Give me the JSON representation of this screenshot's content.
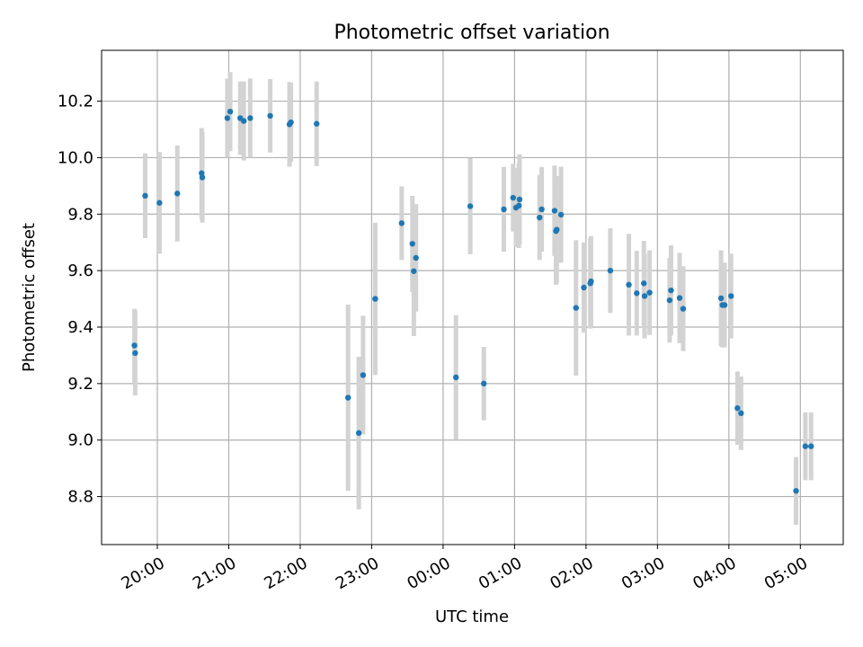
{
  "chart_data": {
    "type": "scatter",
    "title": "Photometric offset variation",
    "xlabel": "UTC time",
    "ylabel": "Photometric offset",
    "grid": true,
    "xlim": [
      -4.78,
      5.6
    ],
    "ylim": [
      8.63,
      10.38
    ],
    "x_unit": "hours relative to 00:00 UTC",
    "xticks": [
      {
        "value": -4,
        "label": "20:00"
      },
      {
        "value": -3,
        "label": "21:00"
      },
      {
        "value": -2,
        "label": "22:00"
      },
      {
        "value": -1,
        "label": "23:00"
      },
      {
        "value": 0,
        "label": "00:00"
      },
      {
        "value": 1,
        "label": "01:00"
      },
      {
        "value": 2,
        "label": "02:00"
      },
      {
        "value": 3,
        "label": "03:00"
      },
      {
        "value": 4,
        "label": "04:00"
      },
      {
        "value": 5,
        "label": "05:00"
      }
    ],
    "yticks": [
      {
        "value": 8.8,
        "label": "8.8"
      },
      {
        "value": 9.0,
        "label": "9.0"
      },
      {
        "value": 9.2,
        "label": "9.2"
      },
      {
        "value": 9.4,
        "label": "9.4"
      },
      {
        "value": 9.6,
        "label": "9.6"
      },
      {
        "value": 9.8,
        "label": "9.8"
      },
      {
        "value": 10.0,
        "label": "10.0"
      },
      {
        "value": 10.2,
        "label": "10.2"
      }
    ],
    "colors": {
      "point": "#1f77b4",
      "errorbar": "#d3d3d3",
      "grid": "#b0b0b0"
    },
    "series": [
      {
        "name": "offset",
        "points": [
          {
            "x": -4.32,
            "y": 9.335,
            "err": 0.13
          },
          {
            "x": -4.31,
            "y": 9.308,
            "err": 0.15
          },
          {
            "x": -4.17,
            "y": 9.865,
            "err": 0.15
          },
          {
            "x": -3.97,
            "y": 9.84,
            "err": 0.18
          },
          {
            "x": -3.72,
            "y": 9.873,
            "err": 0.17
          },
          {
            "x": -3.38,
            "y": 9.945,
            "err": 0.16
          },
          {
            "x": -3.37,
            "y": 9.93,
            "err": 0.16
          },
          {
            "x": -3.02,
            "y": 10.14,
            "err": 0.14
          },
          {
            "x": -2.98,
            "y": 10.163,
            "err": 0.14
          },
          {
            "x": -2.84,
            "y": 10.14,
            "err": 0.13
          },
          {
            "x": -2.79,
            "y": 10.13,
            "err": 0.14
          },
          {
            "x": -2.7,
            "y": 10.14,
            "err": 0.14
          },
          {
            "x": -2.42,
            "y": 10.148,
            "err": 0.13
          },
          {
            "x": -2.15,
            "y": 10.118,
            "err": 0.15
          },
          {
            "x": -2.13,
            "y": 10.125,
            "err": 0.14
          },
          {
            "x": -1.77,
            "y": 10.12,
            "err": 0.15
          },
          {
            "x": -1.33,
            "y": 9.15,
            "err": 0.33
          },
          {
            "x": -1.18,
            "y": 9.025,
            "err": 0.27
          },
          {
            "x": -1.12,
            "y": 9.23,
            "err": 0.21
          },
          {
            "x": -0.95,
            "y": 9.5,
            "err": 0.27
          },
          {
            "x": -0.58,
            "y": 9.768,
            "err": 0.13
          },
          {
            "x": -0.43,
            "y": 9.695,
            "err": 0.17
          },
          {
            "x": -0.41,
            "y": 9.598,
            "err": 0.23
          },
          {
            "x": -0.38,
            "y": 9.645,
            "err": 0.19
          },
          {
            "x": 0.18,
            "y": 9.222,
            "err": 0.22
          },
          {
            "x": 0.38,
            "y": 9.828,
            "err": 0.17
          },
          {
            "x": 0.57,
            "y": 9.2,
            "err": 0.13
          },
          {
            "x": 0.85,
            "y": 9.817,
            "err": 0.15
          },
          {
            "x": 0.98,
            "y": 9.858,
            "err": 0.12
          },
          {
            "x": 1.02,
            "y": 9.823,
            "err": 0.14
          },
          {
            "x": 1.06,
            "y": 9.83,
            "err": 0.15
          },
          {
            "x": 1.07,
            "y": 9.852,
            "err": 0.16
          },
          {
            "x": 1.35,
            "y": 9.788,
            "err": 0.15
          },
          {
            "x": 1.38,
            "y": 9.817,
            "err": 0.15
          },
          {
            "x": 1.56,
            "y": 9.812,
            "err": 0.16
          },
          {
            "x": 1.58,
            "y": 9.74,
            "err": 0.19
          },
          {
            "x": 1.59,
            "y": 9.745,
            "err": 0.19
          },
          {
            "x": 1.65,
            "y": 9.798,
            "err": 0.17
          },
          {
            "x": 1.86,
            "y": 9.468,
            "err": 0.24
          },
          {
            "x": 1.97,
            "y": 9.54,
            "err": 0.16
          },
          {
            "x": 2.06,
            "y": 9.555,
            "err": 0.16
          },
          {
            "x": 2.07,
            "y": 9.562,
            "err": 0.16
          },
          {
            "x": 2.34,
            "y": 9.6,
            "err": 0.15
          },
          {
            "x": 2.6,
            "y": 9.55,
            "err": 0.18
          },
          {
            "x": 2.71,
            "y": 9.52,
            "err": 0.15
          },
          {
            "x": 2.81,
            "y": 9.555,
            "err": 0.15
          },
          {
            "x": 2.82,
            "y": 9.51,
            "err": 0.15
          },
          {
            "x": 2.89,
            "y": 9.522,
            "err": 0.15
          },
          {
            "x": 3.17,
            "y": 9.495,
            "err": 0.15
          },
          {
            "x": 3.19,
            "y": 9.53,
            "err": 0.16
          },
          {
            "x": 3.31,
            "y": 9.503,
            "err": 0.16
          },
          {
            "x": 3.36,
            "y": 9.465,
            "err": 0.15
          },
          {
            "x": 3.89,
            "y": 9.502,
            "err": 0.17
          },
          {
            "x": 3.91,
            "y": 9.478,
            "err": 0.15
          },
          {
            "x": 3.94,
            "y": 9.478,
            "err": 0.15
          },
          {
            "x": 4.03,
            "y": 9.51,
            "err": 0.15
          },
          {
            "x": 4.12,
            "y": 9.113,
            "err": 0.13
          },
          {
            "x": 4.17,
            "y": 9.095,
            "err": 0.13
          },
          {
            "x": 4.94,
            "y": 8.82,
            "err": 0.12
          },
          {
            "x": 5.07,
            "y": 8.978,
            "err": 0.12
          },
          {
            "x": 5.15,
            "y": 8.978,
            "err": 0.12
          }
        ]
      }
    ]
  }
}
